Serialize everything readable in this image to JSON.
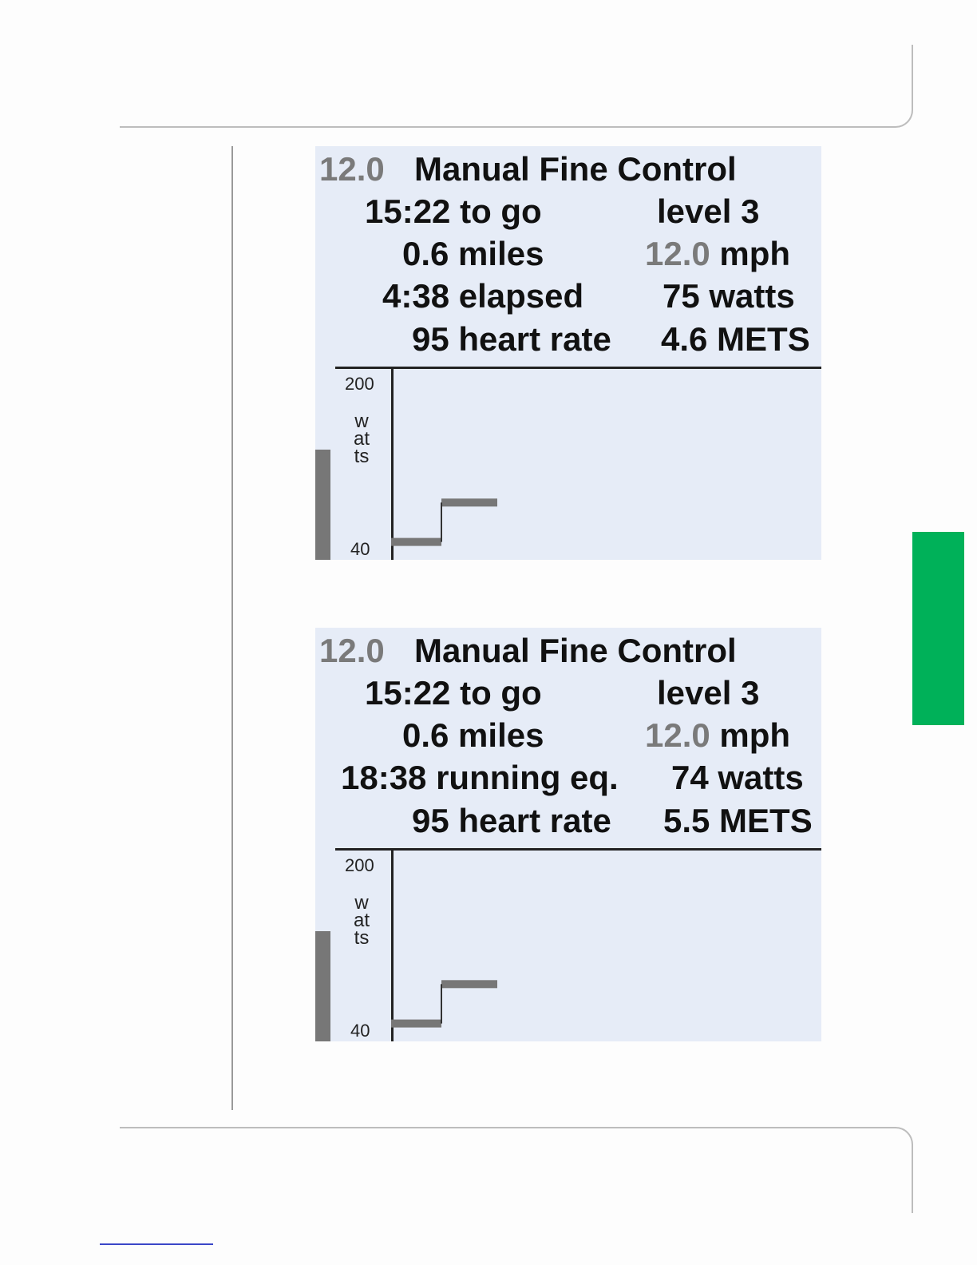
{
  "screens": [
    {
      "speed_value": "12.0",
      "program_title": "Manual Fine Control",
      "time_to_go": "15:22 to go",
      "level": "level  3",
      "distance": "0.6 miles",
      "speed_mph_value": "12.0",
      "speed_unit": "mph",
      "time_stat": "4:38 elapsed",
      "watts": "75 watts",
      "heart_rate": "95 heart rate",
      "mets": "4.6 METS",
      "chart_data": {
        "type": "line",
        "ylabel": "watts",
        "ylim": [
          40,
          200
        ],
        "y_ticks": [
          "200",
          "40"
        ],
        "series": [
          {
            "segments": [
              {
                "x0": 0,
                "x1": 60,
                "y": 55
              },
              {
                "x0": 60,
                "x1": 130,
                "y": 88
              }
            ]
          }
        ]
      }
    },
    {
      "speed_value": "12.0",
      "program_title": "Manual Fine Control",
      "time_to_go": "15:22 to go",
      "level": "level  3",
      "distance": "0.6 miles",
      "speed_mph_value": "12.0",
      "speed_unit": "mph",
      "time_stat": "18:38 running eq.",
      "watts": "74 watts",
      "heart_rate": "95 heart rate",
      "mets": "5.5 METS",
      "chart_data": {
        "type": "line",
        "ylabel": "watts",
        "ylim": [
          40,
          200
        ],
        "y_ticks": [
          "200",
          "40"
        ],
        "series": [
          {
            "segments": [
              {
                "x0": 0,
                "x1": 60,
                "y": 55
              },
              {
                "x0": 60,
                "x1": 130,
                "y": 88
              }
            ]
          }
        ]
      }
    }
  ],
  "colors": {
    "green_tab": "#00b159",
    "screen_bg": "#e6ecf7",
    "step_bar": "#777777"
  }
}
